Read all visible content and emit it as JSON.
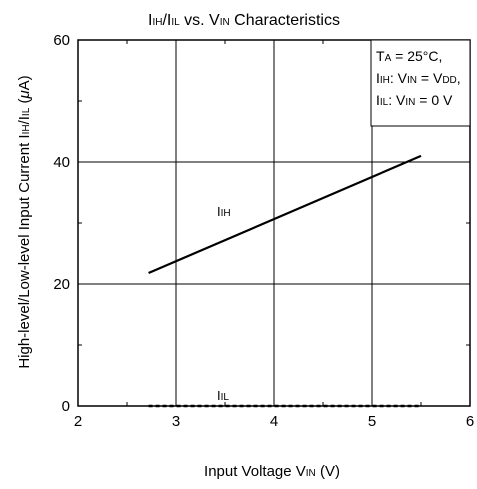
{
  "chart_data": {
    "type": "line",
    "title": {
      "main": "I",
      "sub1": "IH",
      "mid": "/I",
      "sub2": "IL",
      "rest": " vs. V",
      "sub3": "IN",
      "end": " Characteristics"
    },
    "xlabel": {
      "main": "Input Voltage V",
      "sub": "IN",
      "end": " (V)"
    },
    "ylabel": {
      "pre": "High-level/Low-level Input Current I",
      "sub1": "IH",
      "mid": "/I",
      "sub2": "IL",
      "post": " (",
      "mu": "μ",
      "unit": "A)"
    },
    "xlim": [
      2,
      6
    ],
    "ylim": [
      0,
      60
    ],
    "x_ticks": [
      2,
      3,
      4,
      5,
      6
    ],
    "y_ticks": [
      0,
      20,
      40,
      60
    ],
    "x_tick_labels": [
      "2",
      "3",
      "4",
      "5",
      "6"
    ],
    "y_tick_labels": [
      "0",
      "20",
      "40",
      "60"
    ],
    "grid": true,
    "legend_placement": "top-right",
    "conditions": [
      {
        "a": "T",
        "a_sub": "A",
        "b": " = 25°C,"
      },
      {
        "a": "I",
        "a_sub": "IH",
        "b": ":  V",
        "b_sub": "IN",
        "c": " = V",
        "c_sub": "DD",
        "d": ","
      },
      {
        "a": "I",
        "a_sub": "IL",
        "b": ": V",
        "b_sub": "IN",
        "c": " = 0 V"
      }
    ],
    "series": [
      {
        "label_main": "I",
        "label_sub": "IH",
        "style": "solid",
        "color": "#000000",
        "x": [
          2.72,
          5.5
        ],
        "y": [
          21.8,
          41.0
        ],
        "label_at": [
          3.5,
          30
        ]
      },
      {
        "label_main": "I",
        "label_sub": "IL",
        "style": "dashed",
        "color": "#000000",
        "x": [
          2.72,
          5.5
        ],
        "y": [
          0,
          0
        ],
        "label_at": [
          3.5,
          0
        ]
      }
    ]
  }
}
